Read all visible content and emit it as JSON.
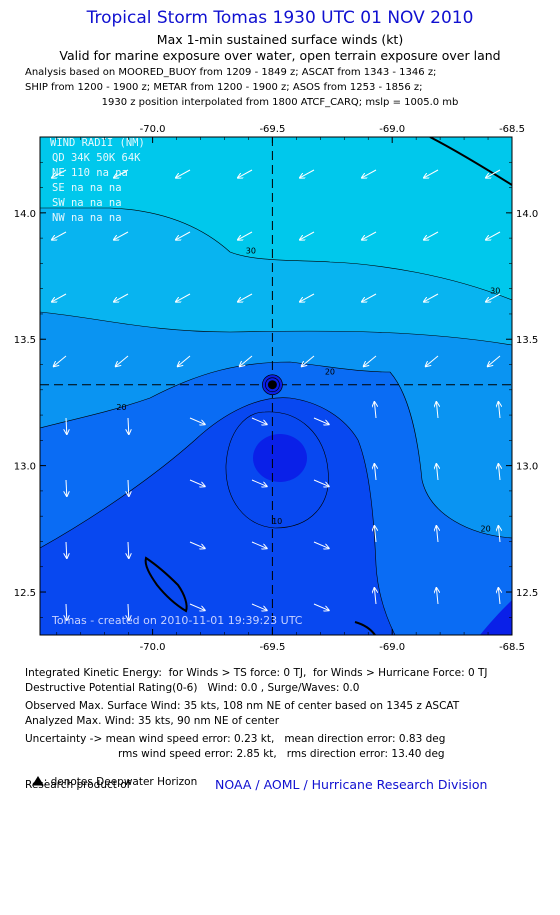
{
  "header": {
    "title": "Tropical Storm Tomas 1930 UTC 01 NOV 2010",
    "subtitle1": "Max 1-min sustained surface winds (kt)",
    "subtitle2": "Valid for marine exposure over water, open terrain exposure over land",
    "analysis_line1": "Analysis based on MOORED_BUOY from 1209 - 1849 z; ASCAT from 1343 - 1346 z;",
    "analysis_line2": "SHIP from 1200 - 1900 z; METAR from 1200 - 1900 z; ASOS from 1253 - 1856 z;",
    "analysis_line3": "1930 z position interpolated from 1800 ATCF_CARQ; mslp = 1005.0 mb"
  },
  "wind_radii": {
    "title": "WIND RADII (NM)",
    "header": [
      "QD",
      "34K",
      "50K",
      "64K"
    ],
    "rows": [
      [
        "NE",
        "110",
        "na",
        "na"
      ],
      [
        "SE",
        "na",
        "na",
        "na"
      ],
      [
        "SW",
        "na",
        "na",
        "na"
      ],
      [
        "NW",
        "na",
        "na",
        "na"
      ]
    ]
  },
  "credit": "Tomas - created on 2010-11-01 19:39:23 UTC",
  "chart_data": {
    "type": "contour",
    "xlabel": "",
    "ylabel": "",
    "xlim": [
      -70.47,
      -68.5
    ],
    "ylim": [
      12.33,
      14.3
    ],
    "x_ticks": [
      "-70.0",
      "-69.5",
      "-69.0",
      "-68.5"
    ],
    "x_tick_values": [
      -70.0,
      -69.5,
      -69.0,
      -68.5
    ],
    "y_ticks": [
      "12.5",
      "13.0",
      "13.5",
      "14.0"
    ],
    "y_tick_values": [
      12.5,
      13.0,
      13.5,
      14.0
    ],
    "storm_center": {
      "lon": -69.5,
      "lat": 13.32
    },
    "contour_labels": [
      {
        "text": "30",
        "lon": -69.59,
        "lat": 13.84
      },
      {
        "text": "30",
        "lon": -68.57,
        "lat": 13.68
      },
      {
        "text": "20",
        "lon": -69.26,
        "lat": 13.36
      },
      {
        "text": "20",
        "lon": -70.13,
        "lat": 13.22
      },
      {
        "text": "20",
        "lon": -68.61,
        "lat": 12.74
      },
      {
        "text": "10",
        "lon": -69.48,
        "lat": 12.77
      }
    ],
    "levels_kt": [
      10,
      15,
      20,
      25,
      30
    ],
    "colors": {
      "lt10": "#0a20e8",
      "r10_15": "#0848f0",
      "r15_20": "#0a6cf4",
      "r20_25": "#0a94f2",
      "r25_30": "#08b4f0",
      "gt30": "#00c8ec"
    }
  },
  "footer": {
    "ike": "Integrated Kinetic Energy:  for Winds > TS force: 0 TJ,  for Winds > Hurricane Force: 0 TJ",
    "dpr": "Destructive Potential Rating(0-6)   Wind: 0.0 , Surge/Waves: 0.0",
    "obs": "Observed Max. Surface Wind: 35 kts, 108 nm NE of center based on 1345 z ASCAT",
    "analyzed": "Analyzed Max. Wind: 35 kts, 90 nm NE of center",
    "unc1": "Uncertainty -> mean wind speed error: 0.23 kt,   mean direction error: 0.83 deg",
    "unc2": "rms wind speed error: 2.85 kt,   rms direction error: 13.40 deg",
    "dwh": ": denotes Deepwater Horizon",
    "research": "Research product of",
    "org": "NOAA / AOML / Hurricane Research Division"
  }
}
